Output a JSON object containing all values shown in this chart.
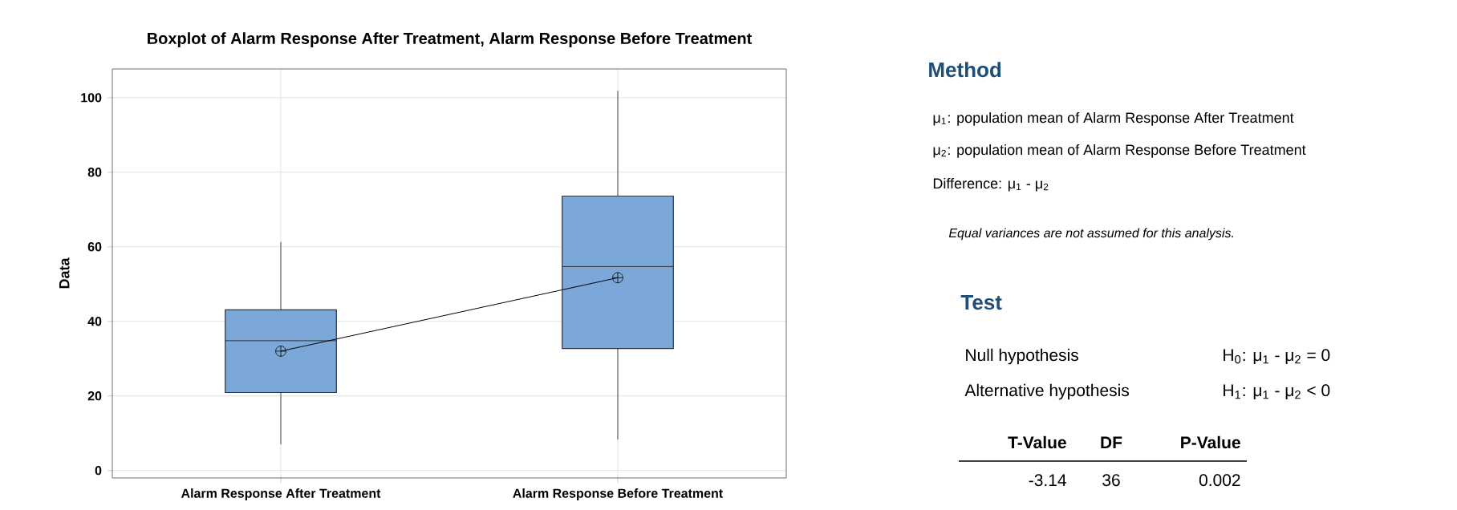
{
  "chart_data": [
    {
      "type": "box",
      "title": "Boxplot of Alarm Response After Treatment, Alarm Response Before Treatment",
      "ylabel": "Data",
      "categories": [
        "Alarm Response After Treatment",
        "Alarm Response Before Treatment"
      ],
      "color": "#7ba7d9",
      "boxes": [
        {
          "low": 7.0,
          "q1": 20.9,
          "median": 34.8,
          "q3": 43.1,
          "high": 61.3,
          "mean": 32.0
        },
        {
          "low": 8.3,
          "q1": 32.7,
          "median": 54.7,
          "q3": 73.6,
          "high": 101.8,
          "mean": 51.7
        }
      ],
      "series": [
        {
          "type": "line",
          "color": "#000000",
          "values": [
            32.0,
            51.7
          ]
        }
      ],
      "ylim": [
        -2,
        107.7
      ],
      "yticks": [
        0,
        20,
        40,
        60,
        80,
        100
      ],
      "grid": true
    },
    {
      "type": "other",
      "title": "Method",
      "subtitle": "Test",
      "annotations": [
        "μ$_{1}$: population mean of Alarm Response After Treatment",
        "μ$_{2}$: population mean of Alarm Response Before Treatment",
        "Difference: μ$_{1}$ - μ$_{2}$",
        "Equal variances are not assumed for this analysis.",
        "Null hypothesis",
        "H$_{0}$: μ$_{1}$ - μ$_{2}$ = 0",
        "Alternative hypothesis",
        "H$_{1}$: μ$_{1}$ - μ$_{2}$ < 0",
        "T-Value",
        "DF",
        "P-Value",
        "-3.14",
        "36",
        "0.002"
      ]
    }
  ]
}
